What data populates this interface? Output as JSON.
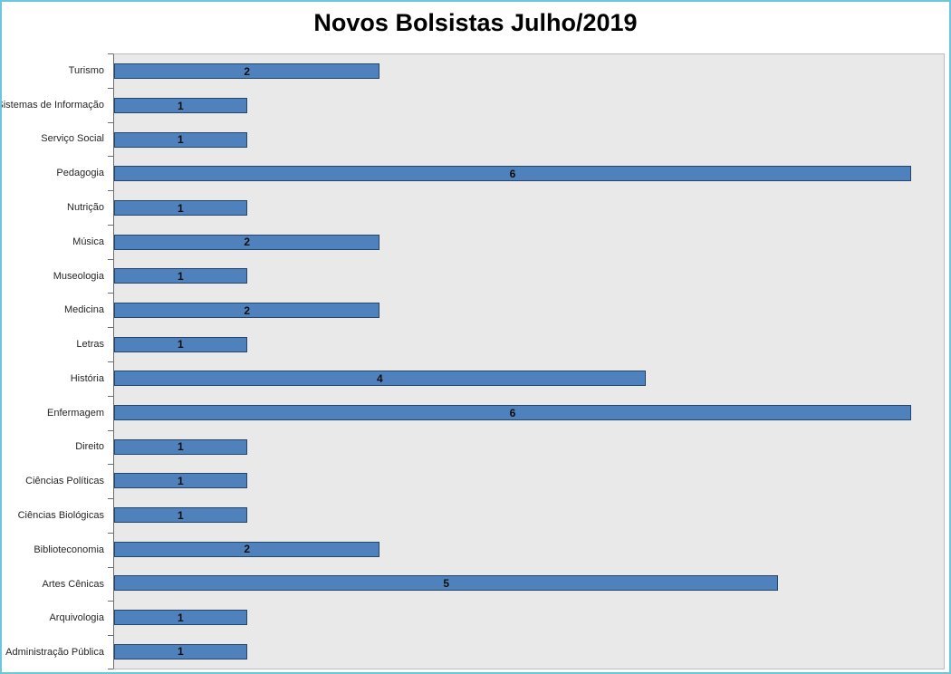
{
  "chart_data": {
    "type": "bar",
    "orientation": "horizontal",
    "title": "Novos Bolsistas Julho/2019",
    "categories": [
      "Turismo",
      "Sistemas de Informação",
      "Serviço Social",
      "Pedagogia",
      "Nutrição",
      "Música",
      "Museologia",
      "Medicina",
      "Letras",
      "História",
      "Enfermagem",
      "Direito",
      "Ciências Políticas",
      "Ciências Biológicas",
      "Biblioteconomia",
      "Artes Cênicas",
      "Arquivologia",
      "Administração Pública"
    ],
    "values": [
      2,
      1,
      1,
      6,
      1,
      2,
      1,
      2,
      1,
      4,
      6,
      1,
      1,
      1,
      2,
      5,
      1,
      1
    ],
    "xlim": [
      0,
      6
    ],
    "xlabel": "",
    "ylabel": "",
    "grid": false,
    "legend": false,
    "data_labels": "center",
    "colors": {
      "bar_fill": "#4f81bd",
      "bar_border": "#24466b",
      "plot_background": "#e9e9e9",
      "chart_border": "#6cc7da",
      "axis_line": "#6e6e6e",
      "label_text": "#262626",
      "value_text": "#0d0d0d",
      "title_text": "#000000"
    }
  }
}
